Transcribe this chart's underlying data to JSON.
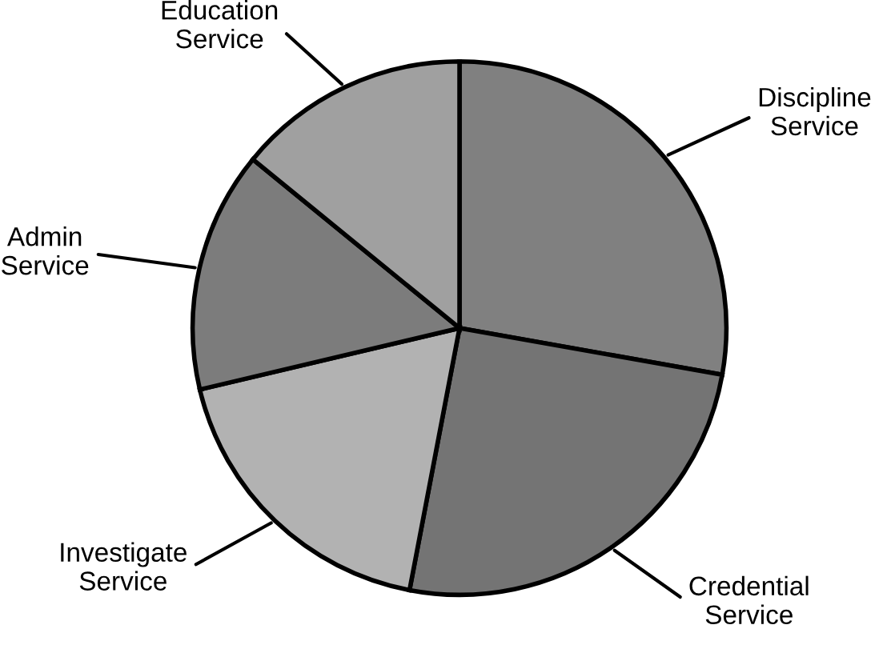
{
  "chart_data": {
    "type": "pie",
    "categories": [
      "Discipline\nService",
      "Credential\nService",
      "Investigate\nService",
      "Admin\nService",
      "Education\nService"
    ],
    "values": [
      27.8,
      25.2,
      18.3,
      14.6,
      14.1
    ],
    "colors": [
      "#808080",
      "#747474",
      "#b2b2b2",
      "#7c7c7c",
      "#a0a0a0"
    ]
  }
}
